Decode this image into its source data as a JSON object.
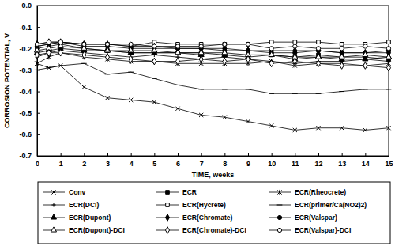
{
  "chart_data": {
    "type": "line",
    "x_label": "TIME, weeks",
    "y_label": "CORROSION POTENTIAL, V",
    "x": [
      0,
      0.5,
      1,
      2,
      3,
      4,
      5,
      6,
      7,
      8,
      9,
      10,
      11,
      12,
      13,
      14,
      15
    ],
    "xlim": [
      0,
      15
    ],
    "xticks": [
      0,
      1,
      2,
      3,
      4,
      5,
      6,
      7,
      8,
      9,
      10,
      11,
      12,
      13,
      14,
      15
    ],
    "ylim": [
      -0.7,
      0
    ],
    "yticks": [
      -0.7,
      -0.6,
      -0.5,
      -0.4,
      -0.3,
      -0.2,
      -0.1,
      {
        "value": 0,
        "label": "0.0"
      }
    ],
    "grid": false,
    "legend": "bottom",
    "series": [
      {
        "name": "Conv",
        "color": "#000000",
        "marker": "x",
        "line_style": "solid",
        "values": [
          -0.27,
          -0.29,
          -0.28,
          -0.38,
          -0.43,
          -0.44,
          -0.45,
          -0.48,
          -0.51,
          -0.52,
          -0.54,
          -0.56,
          -0.58,
          -0.57,
          -0.57,
          -0.58,
          -0.57
        ]
      },
      {
        "name": "ECR",
        "color": "#000000",
        "marker": "square",
        "line_style": "solid",
        "values": [
          -0.2,
          -0.19,
          -0.18,
          -0.2,
          -0.21,
          -0.22,
          -0.22,
          -0.22,
          -0.22,
          -0.23,
          -0.23,
          -0.23,
          -0.24,
          -0.23,
          -0.24,
          -0.24,
          -0.25
        ]
      },
      {
        "name": "ECR(Rheocrete)",
        "color": "#000000",
        "marker": "asterisk",
        "line_style": "solid",
        "values": [
          -0.27,
          -0.24,
          -0.22,
          -0.24,
          -0.25,
          -0.26,
          -0.26,
          -0.27,
          -0.27,
          -0.27,
          -0.27,
          -0.26,
          -0.28,
          -0.27,
          -0.27,
          -0.28,
          -0.27
        ]
      },
      {
        "name": "ECR(DCI)",
        "color": "#000000",
        "marker": "plus",
        "line_style": "solid",
        "values": [
          -0.24,
          -0.22,
          -0.21,
          -0.22,
          -0.23,
          -0.24,
          -0.23,
          -0.24,
          -0.25,
          -0.24,
          -0.25,
          -0.26,
          -0.27,
          -0.26,
          -0.26,
          -0.25,
          -0.26
        ]
      },
      {
        "name": "ECR(Hycrete)",
        "color": "#000000",
        "marker": "square-open",
        "line_style": "solid",
        "values": [
          -0.19,
          -0.18,
          -0.17,
          -0.18,
          -0.18,
          -0.19,
          -0.17,
          -0.18,
          -0.18,
          -0.18,
          -0.18,
          -0.17,
          -0.17,
          -0.17,
          -0.18,
          -0.18,
          -0.17
        ]
      },
      {
        "name": "ECR(primer/Ca(NO2)2)",
        "color": "#000000",
        "marker": "dash",
        "line_style": "solid",
        "values": [
          -0.3,
          -0.29,
          -0.28,
          -0.27,
          -0.32,
          -0.31,
          -0.34,
          -0.37,
          -0.39,
          -0.39,
          -0.39,
          -0.41,
          -0.41,
          -0.41,
          -0.4,
          -0.39,
          -0.39
        ]
      },
      {
        "name": "ECR(Dupont)",
        "color": "#000000",
        "marker": "triangle",
        "line_style": "solid",
        "values": [
          -0.22,
          -0.21,
          -0.2,
          -0.21,
          -0.21,
          -0.22,
          -0.22,
          -0.22,
          -0.23,
          -0.23,
          -0.24,
          -0.23,
          -0.25,
          -0.24,
          -0.25,
          -0.25,
          -0.24
        ]
      },
      {
        "name": "ECR(Chromate)",
        "color": "#000000",
        "marker": "diamond",
        "line_style": "solid",
        "values": [
          -0.18,
          -0.17,
          -0.17,
          -0.18,
          -0.18,
          -0.19,
          -0.19,
          -0.2,
          -0.2,
          -0.2,
          -0.21,
          -0.21,
          -0.21,
          -0.21,
          -0.22,
          -0.22,
          -0.22
        ]
      },
      {
        "name": "ECR(Valspar)",
        "color": "#000000",
        "marker": "circle",
        "line_style": "solid",
        "values": [
          -0.19,
          -0.18,
          -0.17,
          -0.19,
          -0.19,
          -0.2,
          -0.2,
          -0.2,
          -0.2,
          -0.21,
          -0.21,
          -0.22,
          -0.22,
          -0.21,
          -0.22,
          -0.22,
          -0.21
        ]
      },
      {
        "name": "ECR(Dupont)-DCI",
        "color": "#000000",
        "marker": "triangle-open",
        "line_style": "solid",
        "values": [
          -0.21,
          -0.2,
          -0.19,
          -0.2,
          -0.21,
          -0.21,
          -0.21,
          -0.22,
          -0.22,
          -0.22,
          -0.23,
          -0.23,
          -0.24,
          -0.24,
          -0.24,
          -0.23,
          -0.24
        ]
      },
      {
        "name": "ECR(Chromate)-DCI",
        "color": "#000000",
        "marker": "diamond-open",
        "line_style": "solid",
        "values": [
          -0.23,
          -0.22,
          -0.22,
          -0.23,
          -0.24,
          -0.25,
          -0.26,
          -0.26,
          -0.25,
          -0.26,
          -0.25,
          -0.27,
          -0.26,
          -0.27,
          -0.28,
          -0.28,
          -0.29
        ]
      },
      {
        "name": "ECR(Valspar)-DCI",
        "color": "#000000",
        "marker": "circle-open",
        "line_style": "solid",
        "values": [
          -0.18,
          -0.17,
          -0.17,
          -0.18,
          -0.18,
          -0.18,
          -0.19,
          -0.19,
          -0.19,
          -0.18,
          -0.18,
          -0.2,
          -0.19,
          -0.2,
          -0.2,
          -0.19,
          -0.2
        ]
      }
    ]
  }
}
